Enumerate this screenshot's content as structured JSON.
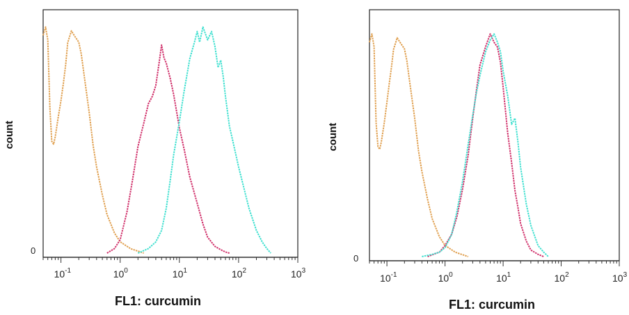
{
  "chart_data": [
    {
      "type": "line",
      "xlabel": "FL1: curcumin",
      "ylabel": "count",
      "xscale": "log",
      "xlim": [
        0.05,
        1000
      ],
      "xticks": [
        {
          "base": "10",
          "exp": "-1",
          "value": 0.1
        },
        {
          "base": "10",
          "exp": "0",
          "value": 1
        },
        {
          "base": "10",
          "exp": "1",
          "value": 10
        },
        {
          "base": "10",
          "exp": "2",
          "value": 100
        },
        {
          "base": "10",
          "exp": "3",
          "value": 1000
        }
      ],
      "yticks": [
        {
          "label": "0",
          "value": 0
        }
      ],
      "ylim": [
        0,
        1
      ],
      "series": [
        {
          "color": "#e0a050",
          "x": [
            0.05,
            0.055,
            0.06,
            0.065,
            0.07,
            0.075,
            0.08,
            0.09,
            0.1,
            0.11,
            0.12,
            0.13,
            0.15,
            0.17,
            0.2,
            0.22,
            0.25,
            0.3,
            0.35,
            0.4,
            0.5,
            0.6,
            0.8,
            1.0,
            1.5,
            2.5
          ],
          "y": [
            0.97,
            1.0,
            0.95,
            0.64,
            0.5,
            0.48,
            0.52,
            0.6,
            0.68,
            0.75,
            0.84,
            0.93,
            0.99,
            0.96,
            0.94,
            0.88,
            0.78,
            0.62,
            0.48,
            0.38,
            0.26,
            0.17,
            0.09,
            0.05,
            0.02,
            0
          ]
        },
        {
          "color": "#d0306a",
          "x": [
            0.6,
            0.8,
            1.0,
            1.3,
            1.6,
            2.0,
            2.5,
            3.0,
            3.5,
            4.0,
            4.5,
            5.0,
            5.5,
            6.0,
            7.0,
            8.0,
            10,
            12,
            15,
            20,
            25,
            30,
            40,
            50,
            60,
            70
          ],
          "y": [
            0,
            0.02,
            0.06,
            0.18,
            0.32,
            0.47,
            0.58,
            0.66,
            0.7,
            0.74,
            0.84,
            0.92,
            0.87,
            0.84,
            0.78,
            0.7,
            0.56,
            0.46,
            0.34,
            0.22,
            0.13,
            0.07,
            0.03,
            0.015,
            0.005,
            0
          ]
        },
        {
          "color": "#40e0d0",
          "x": [
            2.0,
            3.0,
            4.0,
            5.0,
            6.0,
            7.0,
            8.0,
            10,
            12,
            15,
            18,
            20,
            22,
            25,
            30,
            35,
            40,
            45,
            50,
            55,
            60,
            70,
            80,
            100,
            150,
            200,
            250,
            300,
            350
          ],
          "y": [
            0,
            0.02,
            0.05,
            0.1,
            0.2,
            0.32,
            0.44,
            0.58,
            0.72,
            0.86,
            0.94,
            0.98,
            0.94,
            1.0,
            0.95,
            0.98,
            0.92,
            0.82,
            0.86,
            0.78,
            0.7,
            0.56,
            0.5,
            0.38,
            0.2,
            0.1,
            0.05,
            0.02,
            0
          ]
        }
      ]
    },
    {
      "type": "line",
      "xlabel": "FL1: curcumin",
      "ylabel": "count",
      "xscale": "log",
      "xlim": [
        0.05,
        1000
      ],
      "xticks": [
        {
          "base": "10",
          "exp": "-1",
          "value": 0.1
        },
        {
          "base": "10",
          "exp": "0",
          "value": 1
        },
        {
          "base": "10",
          "exp": "1",
          "value": 10
        },
        {
          "base": "10",
          "exp": "2",
          "value": 100
        },
        {
          "base": "10",
          "exp": "3",
          "value": 1000
        }
      ],
      "yticks": [
        {
          "label": "0",
          "value": 0
        }
      ],
      "ylim": [
        0,
        1
      ],
      "series": [
        {
          "color": "#e0a050",
          "x": [
            0.05,
            0.055,
            0.06,
            0.065,
            0.07,
            0.075,
            0.08,
            0.09,
            0.1,
            0.11,
            0.12,
            0.13,
            0.15,
            0.17,
            0.2,
            0.22,
            0.25,
            0.3,
            0.35,
            0.4,
            0.5,
            0.6,
            0.8,
            1.0,
            1.5,
            2.5
          ],
          "y": [
            0.97,
            1.0,
            0.95,
            0.6,
            0.5,
            0.48,
            0.52,
            0.6,
            0.7,
            0.78,
            0.86,
            0.93,
            0.99,
            0.96,
            0.94,
            0.88,
            0.78,
            0.62,
            0.48,
            0.38,
            0.26,
            0.17,
            0.09,
            0.05,
            0.02,
            0
          ]
        },
        {
          "color": "#d0306a",
          "x": [
            0.5,
            0.8,
            1.0,
            1.3,
            1.6,
            2.0,
            2.5,
            3.0,
            3.5,
            4.0,
            5.0,
            6.0,
            7.0,
            8.0,
            9.0,
            10,
            12,
            14,
            16,
            18,
            20,
            25,
            30,
            40,
            50
          ],
          "y": [
            0,
            0.02,
            0.05,
            0.1,
            0.18,
            0.3,
            0.46,
            0.62,
            0.76,
            0.86,
            0.95,
            1.0,
            0.97,
            0.94,
            0.88,
            0.76,
            0.56,
            0.42,
            0.3,
            0.22,
            0.15,
            0.07,
            0.03,
            0.01,
            0
          ]
        },
        {
          "color": "#40e0d0",
          "x": [
            0.4,
            0.6,
            0.8,
            1.0,
            1.3,
            1.6,
            2.0,
            2.5,
            3.0,
            3.5,
            4.0,
            5.0,
            6.0,
            7.0,
            8.0,
            9.0,
            10,
            12,
            14,
            16,
            18,
            20,
            25,
            30,
            40,
            50,
            60
          ],
          "y": [
            0,
            0.01,
            0.02,
            0.04,
            0.1,
            0.2,
            0.34,
            0.5,
            0.64,
            0.74,
            0.82,
            0.92,
            0.98,
            1.0,
            0.97,
            0.92,
            0.84,
            0.72,
            0.6,
            0.62,
            0.52,
            0.4,
            0.24,
            0.14,
            0.05,
            0.02,
            0
          ]
        }
      ]
    }
  ]
}
